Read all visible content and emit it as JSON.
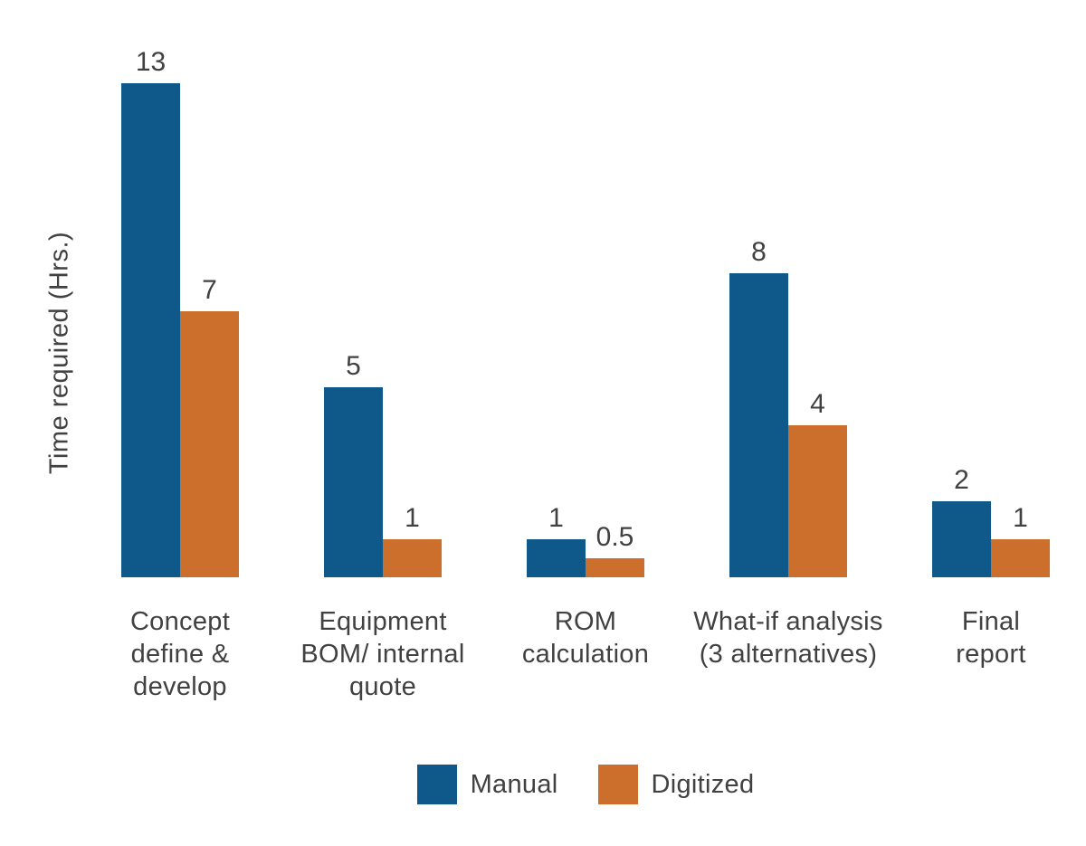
{
  "chart_data": {
    "type": "bar",
    "title": "",
    "xlabel": "",
    "ylabel": "Time required (Hrs.)",
    "categories": [
      "Concept define & develop",
      "Equipment BOM/ internal quote",
      "ROM calculation",
      "What-if analysis (3 alternatives)",
      "Final report"
    ],
    "categories_wrapped": [
      "Concept\ndefine &\ndevelop",
      "Equipment\nBOM/ internal\nquote",
      "ROM\ncalculation",
      "What-if analysis\n(3 alternatives)",
      "Final\nreport"
    ],
    "series": [
      {
        "name": "Manual",
        "color": "#0E598A",
        "values": [
          13,
          5,
          1,
          8,
          2
        ]
      },
      {
        "name": "Digitized",
        "color": "#CC6F2C",
        "values": [
          7,
          1,
          0.5,
          4,
          1
        ]
      }
    ],
    "ylim": [
      0,
      13
    ],
    "grid": false,
    "axes_visible": false,
    "value_labels_shown": true,
    "legend_position": "bottom",
    "text_color": "#414042",
    "background_color": "#FFFFFF"
  }
}
